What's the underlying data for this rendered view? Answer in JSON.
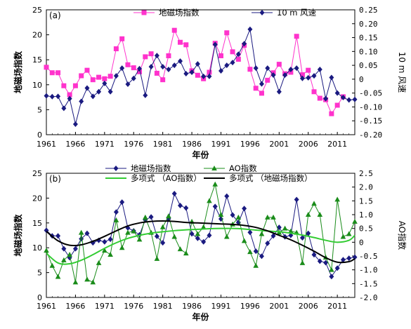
{
  "chart_data": [
    {
      "type": "line",
      "panel_label": "(a)",
      "x_label": "年份",
      "y_left_label": "地磁场指数",
      "y_right_label": "10 m 风速",
      "x_ticks": [
        1961,
        1966,
        1971,
        1976,
        1981,
        1986,
        1991,
        1996,
        2001,
        2006,
        2011
      ],
      "y_left_ticks": [
        0,
        5,
        10,
        15,
        20,
        25
      ],
      "y_right_ticks": [
        "0.25",
        "0.20",
        "0.15",
        "0.10",
        "0.05",
        "0",
        "-0.05",
        "-0.10",
        "-0.15",
        "-0.20"
      ],
      "xlim": [
        1961,
        2014
      ],
      "ylim_left": [
        0,
        25
      ],
      "ylim_right": [
        -0.2,
        0.25
      ],
      "legend_position": "top",
      "series": [
        {
          "name": "地磁场指数",
          "color": "#ff33cc",
          "marker": "square",
          "axis": "left",
          "x": [
            1961,
            1962,
            1963,
            1964,
            1965,
            1966,
            1967,
            1968,
            1969,
            1970,
            1971,
            1972,
            1973,
            1974,
            1975,
            1976,
            1977,
            1978,
            1979,
            1980,
            1981,
            1982,
            1983,
            1984,
            1985,
            1986,
            1987,
            1988,
            1989,
            1990,
            1991,
            1992,
            1993,
            1994,
            1995,
            1996,
            1997,
            1998,
            1999,
            2000,
            2001,
            2002,
            2003,
            2004,
            2005,
            2006,
            2007,
            2008,
            2009,
            2010,
            2011,
            2012,
            2013,
            2014
          ],
          "values": [
            13.5,
            12.4,
            12.4,
            9.8,
            8.0,
            9.8,
            11.8,
            12.9,
            11.0,
            11.5,
            11.2,
            11.7,
            17.2,
            19.2,
            14.0,
            13.4,
            12.6,
            15.6,
            16.2,
            12.3,
            11.0,
            15.8,
            20.9,
            18.5,
            18.0,
            12.8,
            11.9,
            11.2,
            12.5,
            18.3,
            15.8,
            20.4,
            16.6,
            15.1,
            17.9,
            13.1,
            9.3,
            8.3,
            10.9,
            12.4,
            14.1,
            12.2,
            12.5,
            19.7,
            12.0,
            12.9,
            8.6,
            7.3,
            7.0,
            4.2,
            5.9,
            7.6,
            null,
            null
          ]
        },
        {
          "name": "10 m 风速",
          "color": "#1a1a80",
          "marker": "diamond",
          "axis": "right",
          "x": [
            1961,
            1962,
            1963,
            1964,
            1965,
            1966,
            1967,
            1968,
            1969,
            1970,
            1971,
            1972,
            1973,
            1974,
            1975,
            1976,
            1977,
            1978,
            1979,
            1980,
            1981,
            1982,
            1983,
            1984,
            1985,
            1986,
            1987,
            1988,
            1989,
            1990,
            1991,
            1992,
            1993,
            1994,
            1995,
            1996,
            1997,
            1998,
            1999,
            2000,
            2001,
            2002,
            2003,
            2004,
            2005,
            2006,
            2007,
            2008,
            2009,
            2010,
            2011,
            2012,
            2013,
            2014
          ],
          "values": [
            -0.06,
            -0.063,
            -0.062,
            -0.105,
            -0.07,
            -0.162,
            -0.08,
            -0.032,
            -0.062,
            -0.045,
            -0.015,
            -0.045,
            0.012,
            0.04,
            -0.018,
            0.003,
            0.038,
            -0.058,
            0.045,
            0.085,
            0.045,
            0.035,
            0.05,
            0.065,
            0.02,
            0.025,
            0.055,
            0.01,
            0.01,
            0.125,
            0.03,
            0.05,
            0.06,
            0.09,
            0.128,
            0.18,
            0.04,
            -0.017,
            0.04,
            0.015,
            -0.045,
            0.015,
            0.035,
            0.04,
            0.003,
            0.005,
            0.012,
            0.035,
            -0.07,
            0.006,
            -0.05,
            -0.066,
            -0.075,
            -0.073
          ]
        }
      ]
    },
    {
      "type": "line",
      "panel_label": "(b)",
      "x_label": "年份",
      "y_left_label": "地磁场指数",
      "y_right_label": "AO指数",
      "x_ticks": [
        1961,
        1966,
        1971,
        1976,
        1981,
        1986,
        1991,
        1996,
        2001,
        2006,
        2011
      ],
      "y_left_ticks": [
        0,
        5,
        10,
        15,
        20,
        25
      ],
      "y_right_ticks": [
        "2.5",
        "2.0",
        "1.5",
        "1.0",
        "0.5",
        "0",
        "-0.5",
        "-1.0",
        "-1.5",
        "-2.0"
      ],
      "xlim": [
        1961,
        2014
      ],
      "ylim_left": [
        0,
        25
      ],
      "ylim_right": [
        -2.0,
        2.5
      ],
      "legend_position": "top",
      "series": [
        {
          "name": "地磁场指数",
          "color": "#1a1a80",
          "marker": "diamond",
          "axis": "left",
          "x": [
            1961,
            1962,
            1963,
            1964,
            1965,
            1966,
            1967,
            1968,
            1969,
            1970,
            1971,
            1972,
            1973,
            1974,
            1975,
            1976,
            1977,
            1978,
            1979,
            1980,
            1981,
            1982,
            1983,
            1984,
            1985,
            1986,
            1987,
            1988,
            1989,
            1990,
            1991,
            1992,
            1993,
            1994,
            1995,
            1996,
            1997,
            1998,
            1999,
            2000,
            2001,
            2002,
            2003,
            2004,
            2005,
            2006,
            2007,
            2008,
            2009,
            2010,
            2011,
            2012,
            2013,
            2014
          ],
          "values": [
            13.5,
            12.4,
            12.4,
            9.8,
            8.0,
            9.8,
            11.8,
            12.9,
            11.0,
            11.5,
            11.2,
            11.7,
            17.2,
            19.2,
            14.0,
            13.4,
            12.6,
            15.6,
            16.2,
            12.3,
            11.0,
            15.8,
            20.9,
            18.5,
            18.0,
            12.8,
            11.9,
            11.2,
            12.5,
            18.3,
            15.8,
            20.4,
            16.6,
            15.1,
            17.9,
            13.1,
            9.3,
            8.3,
            10.9,
            12.4,
            14.1,
            12.2,
            12.5,
            19.7,
            12.0,
            12.9,
            8.6,
            7.3,
            7.0,
            4.2,
            5.9,
            7.6,
            7.9,
            8.1
          ]
        },
        {
          "name": "AO指数",
          "color": "#1a8c1a",
          "marker": "triangle",
          "axis": "right",
          "x": [
            1961,
            1962,
            1963,
            1964,
            1965,
            1966,
            1967,
            1968,
            1969,
            1970,
            1971,
            1972,
            1973,
            1974,
            1975,
            1976,
            1977,
            1978,
            1979,
            1980,
            1981,
            1982,
            1983,
            1984,
            1985,
            1986,
            1987,
            1988,
            1989,
            1990,
            1991,
            1992,
            1993,
            1994,
            1995,
            1996,
            1997,
            1998,
            1999,
            2000,
            2001,
            2002,
            2003,
            2004,
            2005,
            2006,
            2007,
            2008,
            2009,
            2010,
            2011,
            2012,
            2013,
            2014
          ],
          "values": [
            -0.3,
            -0.85,
            -1.25,
            -0.65,
            -0.45,
            -1.45,
            0.35,
            -1.35,
            -1.45,
            -0.75,
            -0.3,
            -0.45,
            0.8,
            -0.2,
            0.35,
            0.4,
            0.1,
            0.9,
            0.35,
            -0.6,
            0.55,
            0.95,
            0.2,
            -0.25,
            -0.4,
            0.75,
            0.3,
            0.55,
            1.5,
            2.1,
            1.0,
            0.2,
            0.65,
            0.9,
            0.05,
            -0.35,
            -0.85,
            0.3,
            0.9,
            0.9,
            0.35,
            0.5,
            0.4,
            0.35,
            -0.75,
            1.0,
            1.4,
            1.0,
            -0.55,
            -1.0,
            1.55,
            0.2,
            0.3,
            0.75
          ]
        },
        {
          "name": "多项式 （AO指数）",
          "color": "#33cc33",
          "marker": "none",
          "axis": "right",
          "trend": true,
          "x": [
            1961,
            1963,
            1965,
            1967,
            1969,
            1971,
            1973,
            1975,
            1977,
            1979,
            1981,
            1983,
            1985,
            1987,
            1989,
            1991,
            1993,
            1995,
            1997,
            1999,
            2001,
            2003,
            2005,
            2007,
            2009,
            2011,
            2013,
            2014
          ],
          "values": [
            -0.4,
            -0.75,
            -0.78,
            -0.65,
            -0.45,
            -0.22,
            -0.02,
            0.14,
            0.25,
            0.33,
            0.38,
            0.42,
            0.45,
            0.47,
            0.49,
            0.5,
            0.5,
            0.48,
            0.44,
            0.41,
            0.38,
            0.33,
            0.26,
            0.17,
            0.07,
            0.0,
            0.07,
            0.25
          ]
        },
        {
          "name": "多项式 （地磁场指数）",
          "color": "#000000",
          "marker": "none",
          "axis": "left",
          "trend": true,
          "x": [
            1961,
            1963,
            1965,
            1967,
            1969,
            1971,
            1973,
            1975,
            1977,
            1979,
            1981,
            1983,
            1985,
            1987,
            1989,
            1991,
            1993,
            1995,
            1997,
            1999,
            2001,
            2003,
            2005,
            2007,
            2009,
            2011,
            2013,
            2014
          ],
          "values": [
            13.3,
            11.4,
            10.5,
            10.6,
            11.3,
            12.3,
            13.4,
            14.4,
            15.0,
            15.3,
            15.4,
            15.3,
            15.1,
            15.0,
            14.9,
            14.8,
            14.7,
            14.5,
            14.1,
            13.4,
            12.5,
            11.6,
            10.5,
            9.3,
            8.0,
            7.1,
            7.2,
            7.8
          ]
        }
      ]
    }
  ]
}
